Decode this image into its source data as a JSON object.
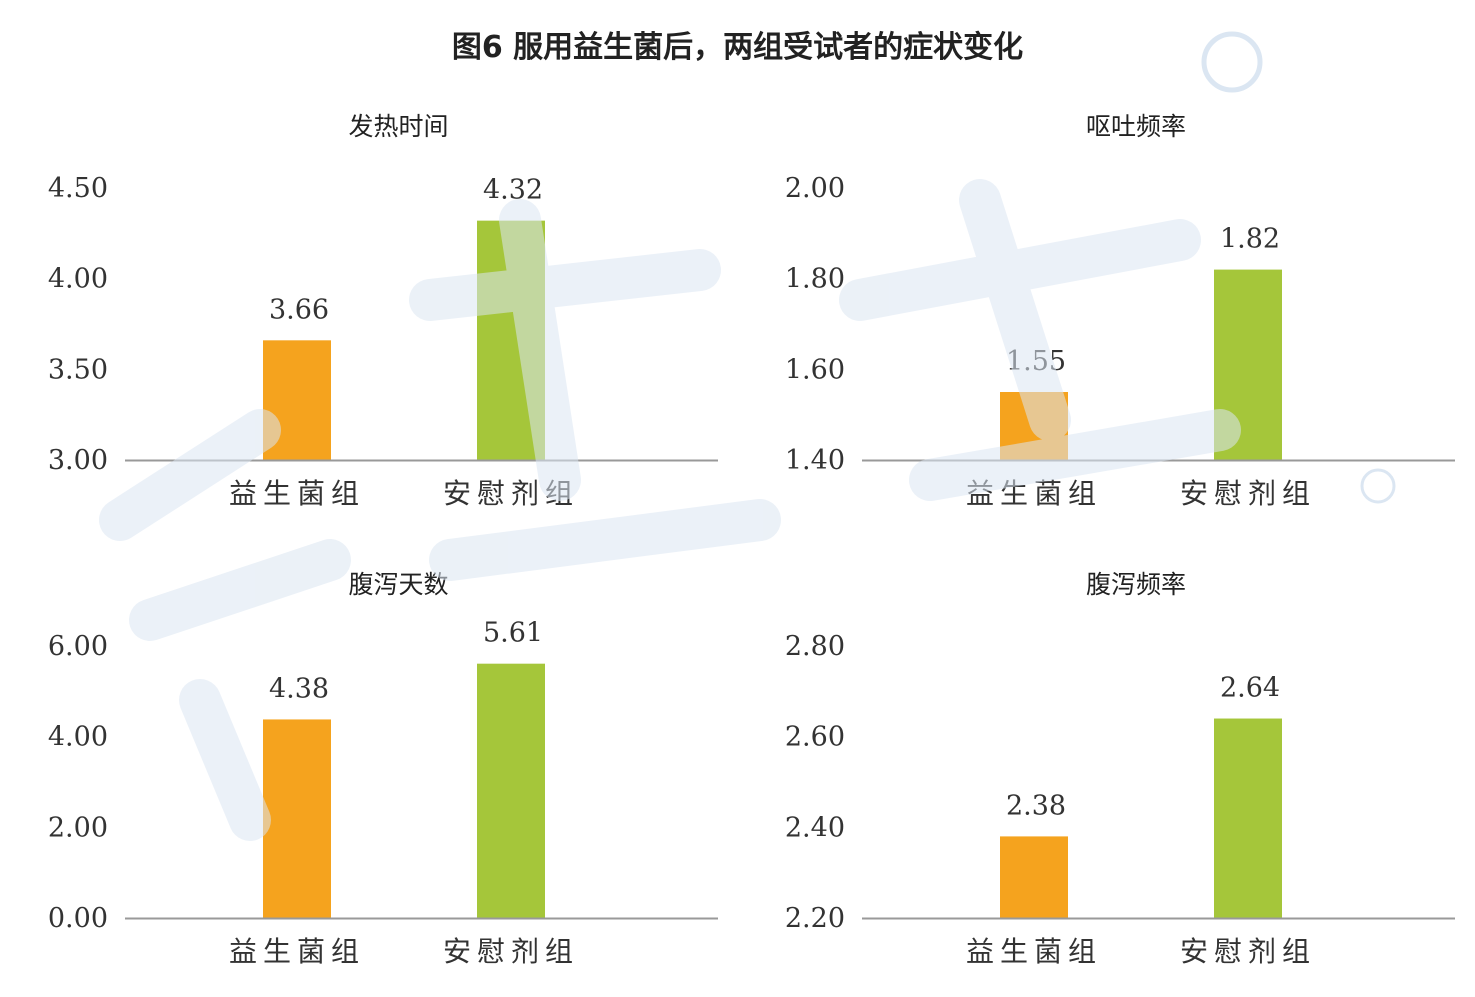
{
  "figure_title": "图6 服用益生菌后，两组受试者的症状变化",
  "colors": {
    "probiotic": "#F5A31E",
    "placebo": "#A5C63A",
    "axis": "#999999",
    "text": "#333333"
  },
  "chart_data": [
    {
      "type": "bar",
      "title": "发热时间",
      "categories": [
        "益生菌组",
        "安慰剂组"
      ],
      "values": [
        3.66,
        4.32
      ],
      "data_labels": [
        "3.66",
        "4.32"
      ],
      "ylim": [
        3.0,
        4.5
      ],
      "yticks": [
        "3.00",
        "3.50",
        "4.00",
        "4.50"
      ],
      "grid": false
    },
    {
      "type": "bar",
      "title": "呕吐频率",
      "categories": [
        "益生菌组",
        "安慰剂组"
      ],
      "values": [
        1.55,
        1.82
      ],
      "data_labels": [
        "1.55",
        "1.82"
      ],
      "ylim": [
        1.4,
        2.0
      ],
      "yticks": [
        "1.40",
        "1.60",
        "1.80",
        "2.00"
      ],
      "grid": false
    },
    {
      "type": "bar",
      "title": "腹泻天数",
      "categories": [
        "益生菌组",
        "安慰剂组"
      ],
      "values": [
        4.38,
        5.61
      ],
      "data_labels": [
        "4.38",
        "5.61"
      ],
      "ylim": [
        0.0,
        6.0
      ],
      "yticks": [
        "0.00",
        "2.00",
        "4.00",
        "6.00"
      ],
      "grid": false
    },
    {
      "type": "bar",
      "title": "腹泻频率",
      "categories": [
        "益生菌组",
        "安慰剂组"
      ],
      "values": [
        2.38,
        2.64
      ],
      "data_labels": [
        "2.38",
        "2.64"
      ],
      "ylim": [
        2.2,
        2.8
      ],
      "yticks": [
        "2.20",
        "2.40",
        "2.60",
        "2.80"
      ],
      "grid": false
    }
  ]
}
